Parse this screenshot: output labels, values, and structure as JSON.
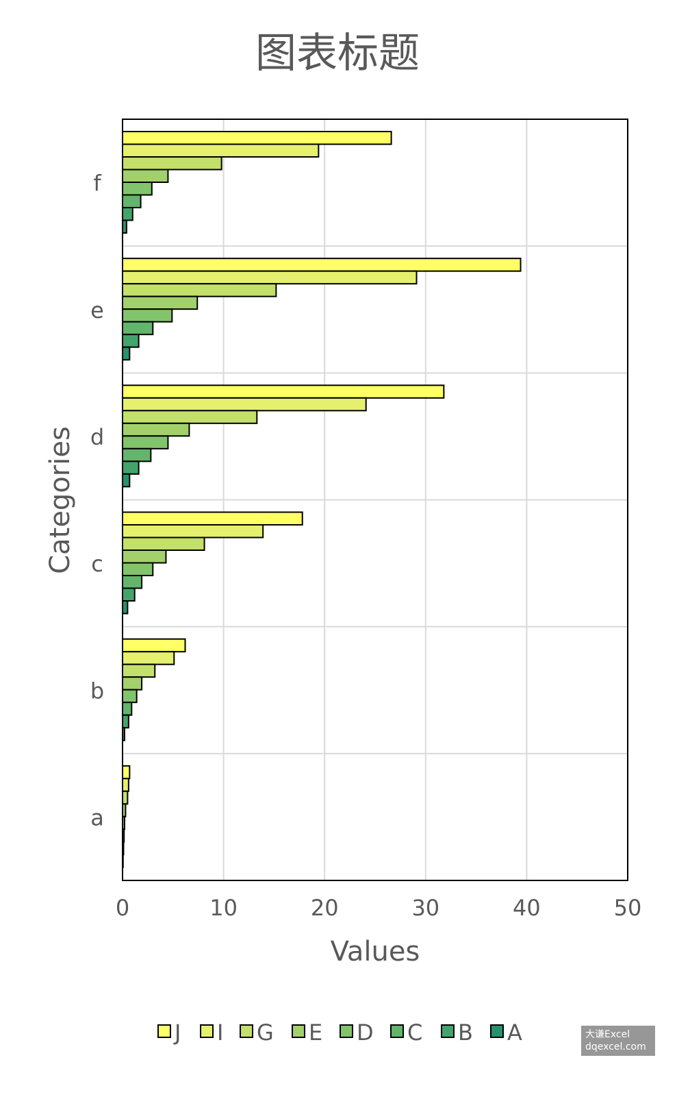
{
  "chart_data": {
    "type": "bar",
    "orientation": "horizontal",
    "title": "图表标题",
    "xlabel": "Values",
    "ylabel": "Categories",
    "xlim": [
      0,
      50
    ],
    "xticks": [
      "0",
      "10",
      "20",
      "30",
      "40",
      "50"
    ],
    "categories": [
      "a",
      "b",
      "c",
      "d",
      "e",
      "f"
    ],
    "grid": true,
    "legend_position": "bottom",
    "series": [
      {
        "name": "J",
        "color": "#ffff66",
        "values": [
          0.7,
          6.2,
          17.8,
          31.8,
          39.4,
          26.6
        ]
      },
      {
        "name": "I",
        "color": "#e4f06e",
        "values": [
          0.6,
          5.1,
          13.9,
          24.1,
          29.1,
          19.4
        ]
      },
      {
        "name": "G",
        "color": "#c3e06a",
        "values": [
          0.5,
          3.2,
          8.1,
          13.3,
          15.2,
          9.8
        ]
      },
      {
        "name": "E",
        "color": "#a2d06a",
        "values": [
          0.3,
          1.9,
          4.3,
          6.6,
          7.4,
          4.5
        ]
      },
      {
        "name": "D",
        "color": "#82c46b",
        "values": [
          0.2,
          1.4,
          3.0,
          4.5,
          4.9,
          2.9
        ]
      },
      {
        "name": "C",
        "color": "#63b56b",
        "values": [
          0.15,
          0.9,
          1.9,
          2.8,
          3.0,
          1.8
        ]
      },
      {
        "name": "B",
        "color": "#43a46b",
        "values": [
          0.1,
          0.6,
          1.2,
          1.6,
          1.6,
          1.0
        ]
      },
      {
        "name": "A",
        "color": "#25926d",
        "values": [
          0.05,
          0.2,
          0.5,
          0.7,
          0.7,
          0.4
        ]
      }
    ]
  },
  "watermark": {
    "line1": "大谦Excel",
    "line2": "dqexcel.com"
  }
}
